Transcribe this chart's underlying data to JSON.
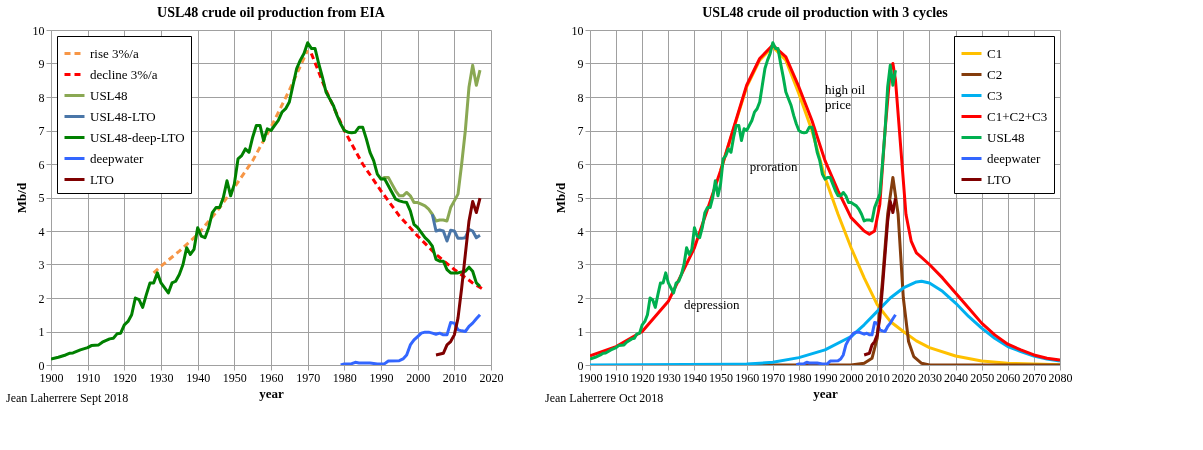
{
  "chart_data": [
    {
      "type": "line",
      "title": "USL48 crude oil production from EIA",
      "xlabel": "year",
      "ylabel": "Mb/d",
      "xlim": [
        1900,
        2020
      ],
      "xticks": [
        1900,
        1910,
        1920,
        1930,
        1940,
        1950,
        1960,
        1970,
        1980,
        1990,
        2000,
        2010,
        2020
      ],
      "ylim": [
        0,
        10
      ],
      "yticks": [
        0,
        1,
        2,
        3,
        4,
        5,
        6,
        7,
        8,
        9,
        10
      ],
      "grid": true,
      "legend": "top left",
      "annotations": [
        "Jean Laherrere Sept 2018"
      ],
      "series": [
        {
          "name": "rise  3%/a",
          "color": "#f79646",
          "line_style": "dashed",
          "x": [
            1928,
            1930,
            1935,
            1940,
            1945,
            1950,
            1955,
            1960,
            1965,
            1970
          ],
          "values": [
            2.75,
            2.95,
            3.4,
            3.9,
            4.55,
            5.3,
            6.1,
            7.1,
            8.2,
            9.4
          ]
        },
        {
          "name": "decline 3%/a",
          "color": "#ff0000",
          "line_style": "dashed",
          "x": [
            1971,
            1975,
            1980,
            1985,
            1990,
            1995,
            2000,
            2005,
            2010,
            2015,
            2018
          ],
          "values": [
            9.3,
            8.2,
            7.0,
            6.0,
            5.2,
            4.45,
            3.85,
            3.3,
            2.85,
            2.45,
            2.25
          ]
        },
        {
          "name": "USL48",
          "color": "#8aa853",
          "line_style": "solid",
          "x": [
            1990,
            1991,
            1992,
            1993,
            1994,
            1995,
            1996,
            1997,
            1998,
            1999,
            2000,
            2001,
            2002,
            2003,
            2004,
            2005,
            2006,
            2007,
            2008,
            2009,
            2010,
            2011,
            2012,
            2013,
            2014,
            2015,
            2016,
            2017
          ],
          "values": [
            5.55,
            5.6,
            5.6,
            5.4,
            5.2,
            5.05,
            5.05,
            5.15,
            5.05,
            4.85,
            4.85,
            4.8,
            4.75,
            4.65,
            4.5,
            4.3,
            4.33,
            4.33,
            4.3,
            4.7,
            4.9,
            5.1,
            6.0,
            7.0,
            8.3,
            8.95,
            8.35,
            8.8
          ]
        },
        {
          "name": "USL48-LTO",
          "color": "#4a76a8",
          "line_style": "solid",
          "x": [
            2004,
            2005,
            2006,
            2007,
            2008,
            2009,
            2010,
            2011,
            2012,
            2013,
            2014,
            2015,
            2016,
            2017
          ],
          "values": [
            4.5,
            4.0,
            4.03,
            4.0,
            3.7,
            4.02,
            4.0,
            3.78,
            3.78,
            3.8,
            4.05,
            4.0,
            3.8,
            3.87
          ]
        },
        {
          "name": "USL48-deep-LTO",
          "color": "#008000",
          "line_style": "solid",
          "x": [
            1900,
            1902,
            1904,
            1905,
            1906,
            1908,
            1910,
            1911,
            1913,
            1914,
            1916,
            1917,
            1918,
            1919,
            1920,
            1921,
            1922,
            1923,
            1924,
            1925,
            1926,
            1927,
            1928,
            1929,
            1930,
            1931,
            1932,
            1933,
            1934,
            1935,
            1936,
            1937,
            1938,
            1939,
            1940,
            1941,
            1942,
            1943,
            1944,
            1945,
            1946,
            1947,
            1948,
            1949,
            1950,
            1951,
            1952,
            1953,
            1954,
            1955,
            1956,
            1957,
            1958,
            1959,
            1960,
            1961,
            1962,
            1963,
            1964,
            1965,
            1966,
            1967,
            1968,
            1969,
            1970,
            1971,
            1972,
            1973,
            1974,
            1975,
            1976,
            1977,
            1978,
            1979,
            1980,
            1981,
            1982,
            1983,
            1984,
            1985,
            1986,
            1987,
            1988,
            1989,
            1990,
            1991,
            1992,
            1993,
            1994,
            1995,
            1996,
            1997,
            1998,
            1999,
            2000,
            2001,
            2002,
            2003,
            2004,
            2005,
            2006,
            2007,
            2008,
            2009,
            2010,
            2011,
            2012,
            2013,
            2014,
            2015,
            2016,
            2017
          ],
          "values": [
            0.18,
            0.23,
            0.3,
            0.35,
            0.36,
            0.45,
            0.52,
            0.58,
            0.6,
            0.68,
            0.78,
            0.8,
            0.93,
            0.95,
            1.2,
            1.3,
            1.5,
            2.0,
            1.95,
            1.72,
            2.1,
            2.45,
            2.45,
            2.75,
            2.45,
            2.3,
            2.15,
            2.45,
            2.5,
            2.7,
            3.0,
            3.5,
            3.3,
            3.45,
            4.1,
            3.85,
            3.8,
            4.1,
            4.55,
            4.7,
            4.7,
            5.0,
            5.5,
            5.05,
            5.4,
            6.15,
            6.25,
            6.45,
            6.35,
            6.8,
            7.15,
            7.15,
            6.7,
            7.05,
            7.0,
            7.15,
            7.3,
            7.55,
            7.65,
            7.85,
            8.35,
            8.85,
            9.1,
            9.3,
            9.62,
            9.45,
            9.45,
            9.0,
            8.6,
            8.15,
            7.95,
            7.75,
            7.45,
            7.2,
            7.0,
            6.95,
            6.93,
            6.95,
            7.1,
            7.1,
            6.75,
            6.35,
            6.1,
            5.7,
            5.55,
            5.55,
            5.35,
            5.15,
            4.95,
            4.9,
            4.87,
            4.85,
            4.6,
            4.2,
            4.1,
            3.95,
            3.8,
            3.7,
            3.55,
            3.15,
            3.1,
            3.1,
            2.85,
            2.75,
            2.75,
            2.75,
            2.78,
            2.8,
            2.92,
            2.8,
            2.45,
            2.35
          ]
        },
        {
          "name": "deepwater",
          "color": "#3366ff",
          "line_style": "solid",
          "x": [
            1979,
            1980,
            1982,
            1983,
            1984,
            1987,
            1989,
            1991,
            1992,
            1995,
            1996,
            1997,
            1998,
            1999,
            2000,
            2001,
            2002,
            2003,
            2004,
            2005,
            2006,
            2007,
            2008,
            2009,
            2010,
            2011,
            2012,
            2013,
            2014,
            2015,
            2016,
            2017
          ],
          "values": [
            0.0,
            0.03,
            0.04,
            0.08,
            0.06,
            0.06,
            0.03,
            0.04,
            0.12,
            0.13,
            0.18,
            0.3,
            0.6,
            0.75,
            0.85,
            0.95,
            0.98,
            0.98,
            0.95,
            0.92,
            0.95,
            0.9,
            0.9,
            1.27,
            1.25,
            1.05,
            1.02,
            1.0,
            1.15,
            1.25,
            1.38,
            1.5
          ]
        },
        {
          "name": "LTO",
          "color": "#7f0000",
          "line_style": "solid",
          "x": [
            2005,
            2007,
            2008,
            2009,
            2010,
            2011,
            2012,
            2013,
            2014,
            2015,
            2016,
            2017
          ],
          "values": [
            0.3,
            0.35,
            0.6,
            0.7,
            0.9,
            1.4,
            2.3,
            3.3,
            4.3,
            4.88,
            4.55,
            4.98
          ]
        }
      ]
    },
    {
      "type": "line",
      "title": "USL48 crude oil production with 3 cycles",
      "xlabel": "year",
      "ylabel": "Mb/d",
      "xlim": [
        1900,
        2080
      ],
      "xticks": [
        1900,
        1910,
        1920,
        1930,
        1940,
        1950,
        1960,
        1970,
        1980,
        1990,
        2000,
        2010,
        2020,
        2030,
        2040,
        2050,
        2060,
        2070,
        2080
      ],
      "ylim": [
        0,
        10
      ],
      "yticks": [
        0,
        1,
        2,
        3,
        4,
        5,
        6,
        7,
        8,
        9,
        10
      ],
      "grid": true,
      "legend": "top right",
      "annotations": [
        "depression",
        "proration",
        "high oil\nprice",
        "Jean Laherrere Oct 2018"
      ],
      "series": [
        {
          "name": "C1",
          "color": "#ffc000",
          "line_style": "solid",
          "x": [
            1950,
            1960,
            1965,
            1970,
            1975,
            1980,
            1985,
            1990,
            1995,
            2000,
            2005,
            2010,
            2015,
            2020,
            2025,
            2030,
            2040,
            2050,
            2060,
            2070,
            2080
          ],
          "values": [
            5.8,
            8.3,
            9.1,
            9.5,
            9.1,
            8.1,
            7.0,
            5.6,
            4.5,
            3.5,
            2.6,
            1.8,
            1.3,
            1.0,
            0.72,
            0.52,
            0.27,
            0.12,
            0.05,
            0.03,
            0.01
          ]
        },
        {
          "name": "C2",
          "color": "#843c0c",
          "line_style": "solid",
          "x": [
            1960,
            1990,
            2000,
            2005,
            2008,
            2010,
            2012,
            2014,
            2016,
            2018,
            2020,
            2022,
            2024,
            2027,
            2030,
            2080
          ],
          "values": [
            0.0,
            0.0,
            0.0,
            0.05,
            0.2,
            0.8,
            2.5,
            4.5,
            5.6,
            4.5,
            2.0,
            0.7,
            0.25,
            0.05,
            0.0,
            0.0
          ]
        },
        {
          "name": "C3",
          "color": "#00b0f0",
          "line_style": "solid",
          "x": [
            1900,
            1955,
            1960,
            1970,
            1980,
            1990,
            2000,
            2005,
            2010,
            2015,
            2020,
            2025,
            2027,
            2030,
            2035,
            2040,
            2045,
            2050,
            2055,
            2060,
            2065,
            2070,
            2075,
            2080
          ],
          "values": [
            0.0,
            0.02,
            0.03,
            0.08,
            0.22,
            0.45,
            0.85,
            1.2,
            1.6,
            2.0,
            2.3,
            2.48,
            2.5,
            2.45,
            2.2,
            1.85,
            1.45,
            1.1,
            0.8,
            0.55,
            0.4,
            0.27,
            0.18,
            0.12
          ]
        },
        {
          "name": "C1+C2+C3",
          "color": "#ff0000",
          "line_style": "solid",
          "x": [
            1900,
            1910,
            1920,
            1930,
            1940,
            1950,
            1960,
            1965,
            1970,
            1975,
            1980,
            1985,
            1990,
            1995,
            2000,
            2005,
            2007,
            2009,
            2011,
            2013,
            2015,
            2016,
            2017,
            2019,
            2021,
            2023,
            2025,
            2030,
            2035,
            2040,
            2045,
            2050,
            2055,
            2060,
            2065,
            2070,
            2075,
            2080
          ],
          "values": [
            0.27,
            0.55,
            1.0,
            1.9,
            3.5,
            5.8,
            8.35,
            9.15,
            9.55,
            9.2,
            8.3,
            7.3,
            6.1,
            5.2,
            4.4,
            4.0,
            3.9,
            4.0,
            4.8,
            7.0,
            8.8,
            9.0,
            8.5,
            6.5,
            4.5,
            3.7,
            3.35,
            3.0,
            2.6,
            2.15,
            1.7,
            1.25,
            0.9,
            0.62,
            0.45,
            0.3,
            0.2,
            0.15
          ]
        },
        {
          "name": "USL48",
          "color": "#00b050",
          "line_style": "solid",
          "x": [
            1900,
            1902,
            1904,
            1905,
            1906,
            1908,
            1910,
            1911,
            1913,
            1914,
            1916,
            1917,
            1918,
            1919,
            1920,
            1921,
            1922,
            1923,
            1924,
            1925,
            1926,
            1927,
            1928,
            1929,
            1930,
            1931,
            1932,
            1933,
            1934,
            1935,
            1936,
            1937,
            1938,
            1939,
            1940,
            1941,
            1942,
            1943,
            1944,
            1945,
            1946,
            1947,
            1948,
            1949,
            1950,
            1951,
            1952,
            1953,
            1954,
            1955,
            1956,
            1957,
            1958,
            1959,
            1960,
            1961,
            1962,
            1963,
            1964,
            1965,
            1966,
            1967,
            1968,
            1969,
            1970,
            1971,
            1972,
            1973,
            1974,
            1975,
            1976,
            1977,
            1978,
            1979,
            1980,
            1981,
            1982,
            1983,
            1984,
            1985,
            1986,
            1987,
            1988,
            1989,
            1990,
            1991,
            1992,
            1993,
            1994,
            1995,
            1996,
            1997,
            1998,
            1999,
            2000,
            2001,
            2002,
            2003,
            2004,
            2005,
            2006,
            2007,
            2008,
            2009,
            2010,
            2011,
            2012,
            2013,
            2014,
            2015,
            2016,
            2017
          ],
          "values": [
            0.18,
            0.23,
            0.3,
            0.35,
            0.36,
            0.45,
            0.52,
            0.58,
            0.6,
            0.68,
            0.78,
            0.8,
            0.93,
            0.95,
            1.2,
            1.3,
            1.5,
            2.0,
            1.95,
            1.72,
            2.1,
            2.45,
            2.45,
            2.75,
            2.45,
            2.3,
            2.15,
            2.45,
            2.5,
            2.7,
            3.0,
            3.5,
            3.3,
            3.45,
            4.1,
            3.85,
            3.8,
            4.1,
            4.55,
            4.7,
            4.7,
            5.0,
            5.5,
            5.05,
            5.4,
            6.15,
            6.25,
            6.45,
            6.35,
            6.8,
            7.15,
            7.15,
            6.7,
            7.05,
            7.0,
            7.15,
            7.3,
            7.55,
            7.65,
            7.85,
            8.35,
            8.85,
            9.1,
            9.3,
            9.62,
            9.45,
            9.45,
            9.0,
            8.6,
            8.15,
            7.95,
            7.75,
            7.45,
            7.2,
            7.0,
            6.95,
            6.93,
            6.95,
            7.1,
            7.1,
            6.75,
            6.35,
            6.1,
            5.7,
            5.55,
            5.6,
            5.6,
            5.4,
            5.2,
            5.05,
            5.05,
            5.15,
            5.05,
            4.85,
            4.85,
            4.8,
            4.75,
            4.65,
            4.5,
            4.3,
            4.33,
            4.33,
            4.3,
            4.7,
            4.9,
            5.1,
            6.0,
            7.0,
            8.3,
            8.95,
            8.35,
            8.8
          ]
        },
        {
          "name": "deepwater",
          "color": "#3366ff",
          "line_style": "solid",
          "x": [
            1979,
            1980,
            1982,
            1983,
            1984,
            1987,
            1989,
            1991,
            1992,
            1995,
            1996,
            1997,
            1998,
            1999,
            2000,
            2001,
            2002,
            2003,
            2004,
            2005,
            2006,
            2007,
            2008,
            2009,
            2010,
            2011,
            2012,
            2013,
            2014,
            2015,
            2016,
            2017
          ],
          "values": [
            0.0,
            0.03,
            0.04,
            0.08,
            0.06,
            0.06,
            0.03,
            0.04,
            0.12,
            0.13,
            0.18,
            0.3,
            0.6,
            0.75,
            0.85,
            0.95,
            0.98,
            0.98,
            0.95,
            0.92,
            0.95,
            0.9,
            0.9,
            1.27,
            1.25,
            1.05,
            1.02,
            1.0,
            1.15,
            1.25,
            1.38,
            1.5
          ]
        },
        {
          "name": "LTO",
          "color": "#7f0000",
          "line_style": "solid",
          "x": [
            2005,
            2007,
            2008,
            2009,
            2010,
            2011,
            2012,
            2013,
            2014,
            2015,
            2016,
            2017
          ],
          "values": [
            0.3,
            0.35,
            0.6,
            0.7,
            0.9,
            1.4,
            2.3,
            3.3,
            4.3,
            4.88,
            4.55,
            4.98
          ]
        }
      ]
    }
  ]
}
